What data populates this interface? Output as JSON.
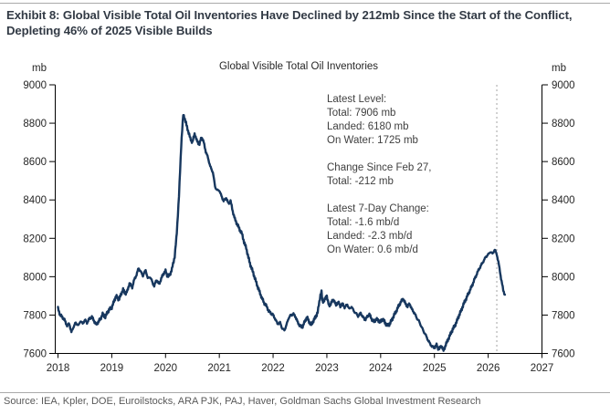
{
  "page": {
    "exhibit_title": "Exhibit 8: Global Visible Total Oil Inventories Have Declined by 212mb Since the Start of the Conflict, Depleting 46% of 2025 Visible Builds",
    "source_line": "Source: IEA, Kpler, DOE, Euroilstocks, ARA PJK, PAJ, Haver, Goldman Sachs Global Investment Research"
  },
  "colors": {
    "line_navy": "#17375e",
    "title_text": "#323a45",
    "annotation_text": "#404040",
    "source_text": "#595959",
    "rule_gray": "#a9a9a9",
    "axis_black": "#000000",
    "event_line_gray": "#a3a3a3"
  },
  "chart_data": {
    "type": "line",
    "title": "Global Visible Total Oil Inventories",
    "xlabel": "",
    "ylabel": "mb",
    "grid": false,
    "legend": "none",
    "y_axis": {
      "unit_label": "mb",
      "min": 7600,
      "max": 9000,
      "ticks": [
        7600,
        7800,
        8000,
        8200,
        8400,
        8600,
        8800,
        9000
      ],
      "sides": [
        "left",
        "right"
      ]
    },
    "x_axis": {
      "min": 2018,
      "max": 2027,
      "ticks": [
        2018,
        2019,
        2020,
        2021,
        2022,
        2023,
        2024,
        2025,
        2026,
        2027
      ]
    },
    "annotation": "Latest Level:\nTotal: 7906 mb\nLanded: 6180 mb\nOn Water: 1725 mb\n\nChange Since Feb 27,\nTotal: -212 mb\n\nLatest 7-Day Change:\nTotal: -1.6 mb/d\nLanded: -2.3 mb/d\nOn Water: 0.6 mb/d",
    "event_line_x": 2026.16,
    "latest_values": {
      "total_mb": 7906,
      "landed_mb": 6180,
      "on_water_mb": 1725,
      "change_since_feb_27_mb": -212,
      "total_7day_mbd": -1.6,
      "landed_7day_mbd": -2.3,
      "on_water_7day_mbd": 0.6
    },
    "series": [
      {
        "name": "Global Visible Total Oil Inventories (mb)",
        "points": [
          [
            2018.0,
            7835
          ],
          [
            2018.04,
            7800
          ],
          [
            2018.08,
            7790
          ],
          [
            2018.12,
            7775
          ],
          [
            2018.17,
            7745
          ],
          [
            2018.21,
            7755
          ],
          [
            2018.25,
            7710
          ],
          [
            2018.29,
            7740
          ],
          [
            2018.33,
            7760
          ],
          [
            2018.38,
            7745
          ],
          [
            2018.42,
            7770
          ],
          [
            2018.46,
            7755
          ],
          [
            2018.5,
            7775
          ],
          [
            2018.54,
            7760
          ],
          [
            2018.58,
            7780
          ],
          [
            2018.63,
            7790
          ],
          [
            2018.67,
            7770
          ],
          [
            2018.71,
            7750
          ],
          [
            2018.75,
            7765
          ],
          [
            2018.79,
            7780
          ],
          [
            2018.83,
            7805
          ],
          [
            2018.88,
            7790
          ],
          [
            2018.92,
            7815
          ],
          [
            2018.96,
            7830
          ],
          [
            2019.0,
            7840
          ],
          [
            2019.04,
            7870
          ],
          [
            2019.08,
            7900
          ],
          [
            2019.13,
            7880
          ],
          [
            2019.17,
            7905
          ],
          [
            2019.21,
            7935
          ],
          [
            2019.25,
            7910
          ],
          [
            2019.29,
            7925
          ],
          [
            2019.33,
            7965
          ],
          [
            2019.38,
            7945
          ],
          [
            2019.42,
            7985
          ],
          [
            2019.46,
            8010
          ],
          [
            2019.5,
            8045
          ],
          [
            2019.54,
            8025
          ],
          [
            2019.58,
            8005
          ],
          [
            2019.63,
            8035
          ],
          [
            2019.67,
            7990
          ],
          [
            2019.71,
            8000
          ],
          [
            2019.75,
            7975
          ],
          [
            2019.79,
            7950
          ],
          [
            2019.83,
            7985
          ],
          [
            2019.88,
            7960
          ],
          [
            2019.92,
            7990
          ],
          [
            2019.96,
            8015
          ],
          [
            2020.0,
            8030
          ],
          [
            2020.04,
            8000
          ],
          [
            2020.08,
            8010
          ],
          [
            2020.12,
            8040
          ],
          [
            2020.17,
            8105
          ],
          [
            2020.21,
            8230
          ],
          [
            2020.25,
            8420
          ],
          [
            2020.29,
            8680
          ],
          [
            2020.33,
            8845
          ],
          [
            2020.35,
            8830
          ],
          [
            2020.38,
            8800
          ],
          [
            2020.42,
            8760
          ],
          [
            2020.46,
            8720
          ],
          [
            2020.5,
            8700
          ],
          [
            2020.54,
            8745
          ],
          [
            2020.58,
            8710
          ],
          [
            2020.63,
            8690
          ],
          [
            2020.67,
            8730
          ],
          [
            2020.71,
            8700
          ],
          [
            2020.75,
            8650
          ],
          [
            2020.79,
            8620
          ],
          [
            2020.83,
            8575
          ],
          [
            2020.88,
            8545
          ],
          [
            2020.92,
            8470
          ],
          [
            2020.96,
            8450
          ],
          [
            2021.0,
            8450
          ],
          [
            2021.04,
            8420
          ],
          [
            2021.08,
            8395
          ],
          [
            2021.13,
            8410
          ],
          [
            2021.17,
            8380
          ],
          [
            2021.21,
            8395
          ],
          [
            2021.25,
            8340
          ],
          [
            2021.29,
            8300
          ],
          [
            2021.33,
            8275
          ],
          [
            2021.38,
            8245
          ],
          [
            2021.42,
            8225
          ],
          [
            2021.46,
            8180
          ],
          [
            2021.5,
            8150
          ],
          [
            2021.54,
            8100
          ],
          [
            2021.58,
            8060
          ],
          [
            2021.63,
            8020
          ],
          [
            2021.67,
            7985
          ],
          [
            2021.71,
            7950
          ],
          [
            2021.75,
            7920
          ],
          [
            2021.79,
            7890
          ],
          [
            2021.83,
            7865
          ],
          [
            2021.88,
            7845
          ],
          [
            2021.92,
            7820
          ],
          [
            2021.96,
            7810
          ],
          [
            2022.0,
            7800
          ],
          [
            2022.04,
            7780
          ],
          [
            2022.08,
            7755
          ],
          [
            2022.13,
            7760
          ],
          [
            2022.17,
            7730
          ],
          [
            2022.21,
            7720
          ],
          [
            2022.25,
            7750
          ],
          [
            2022.29,
            7785
          ],
          [
            2022.33,
            7800
          ],
          [
            2022.38,
            7805
          ],
          [
            2022.42,
            7790
          ],
          [
            2022.46,
            7760
          ],
          [
            2022.5,
            7745
          ],
          [
            2022.54,
            7735
          ],
          [
            2022.58,
            7760
          ],
          [
            2022.63,
            7790
          ],
          [
            2022.67,
            7765
          ],
          [
            2022.71,
            7750
          ],
          [
            2022.75,
            7770
          ],
          [
            2022.79,
            7790
          ],
          [
            2022.83,
            7815
          ],
          [
            2022.88,
            7905
          ],
          [
            2022.9,
            7920
          ],
          [
            2022.92,
            7870
          ],
          [
            2022.96,
            7880
          ],
          [
            2023.0,
            7900
          ],
          [
            2023.04,
            7845
          ],
          [
            2023.08,
            7865
          ],
          [
            2023.13,
            7880
          ],
          [
            2023.17,
            7850
          ],
          [
            2023.21,
            7870
          ],
          [
            2023.25,
            7845
          ],
          [
            2023.29,
            7860
          ],
          [
            2023.33,
            7840
          ],
          [
            2023.38,
            7855
          ],
          [
            2023.42,
            7830
          ],
          [
            2023.46,
            7845
          ],
          [
            2023.5,
            7820
          ],
          [
            2023.54,
            7810
          ],
          [
            2023.58,
            7795
          ],
          [
            2023.63,
            7810
          ],
          [
            2023.67,
            7790
          ],
          [
            2023.71,
            7775
          ],
          [
            2023.75,
            7790
          ],
          [
            2023.79,
            7805
          ],
          [
            2023.83,
            7780
          ],
          [
            2023.88,
            7765
          ],
          [
            2023.92,
            7780
          ],
          [
            2023.96,
            7770
          ],
          [
            2024.0,
            7765
          ],
          [
            2024.04,
            7780
          ],
          [
            2024.08,
            7760
          ],
          [
            2024.13,
            7745
          ],
          [
            2024.17,
            7755
          ],
          [
            2024.21,
            7775
          ],
          [
            2024.25,
            7800
          ],
          [
            2024.29,
            7820
          ],
          [
            2024.33,
            7845
          ],
          [
            2024.38,
            7870
          ],
          [
            2024.42,
            7885
          ],
          [
            2024.46,
            7860
          ],
          [
            2024.5,
            7845
          ],
          [
            2024.54,
            7860
          ],
          [
            2024.58,
            7830
          ],
          [
            2024.63,
            7810
          ],
          [
            2024.67,
            7785
          ],
          [
            2024.71,
            7770
          ],
          [
            2024.75,
            7745
          ],
          [
            2024.79,
            7720
          ],
          [
            2024.83,
            7700
          ],
          [
            2024.88,
            7670
          ],
          [
            2024.92,
            7650
          ],
          [
            2024.96,
            7635
          ],
          [
            2025.0,
            7630
          ],
          [
            2025.04,
            7645
          ],
          [
            2025.08,
            7620
          ],
          [
            2025.13,
            7640
          ],
          [
            2025.17,
            7615
          ],
          [
            2025.21,
            7645
          ],
          [
            2025.25,
            7670
          ],
          [
            2025.29,
            7695
          ],
          [
            2025.33,
            7720
          ],
          [
            2025.38,
            7745
          ],
          [
            2025.42,
            7770
          ],
          [
            2025.46,
            7800
          ],
          [
            2025.5,
            7825
          ],
          [
            2025.54,
            7855
          ],
          [
            2025.58,
            7880
          ],
          [
            2025.63,
            7910
          ],
          [
            2025.67,
            7935
          ],
          [
            2025.71,
            7960
          ],
          [
            2025.75,
            7990
          ],
          [
            2025.79,
            8015
          ],
          [
            2025.83,
            8040
          ],
          [
            2025.88,
            8065
          ],
          [
            2025.92,
            8085
          ],
          [
            2025.96,
            8105
          ],
          [
            2026.0,
            8115
          ],
          [
            2026.04,
            8130
          ],
          [
            2026.08,
            8120
          ],
          [
            2026.12,
            8140
          ],
          [
            2026.16,
            8118
          ],
          [
            2026.2,
            8060
          ],
          [
            2026.24,
            7990
          ],
          [
            2026.28,
            7930
          ],
          [
            2026.31,
            7906
          ]
        ]
      }
    ]
  }
}
